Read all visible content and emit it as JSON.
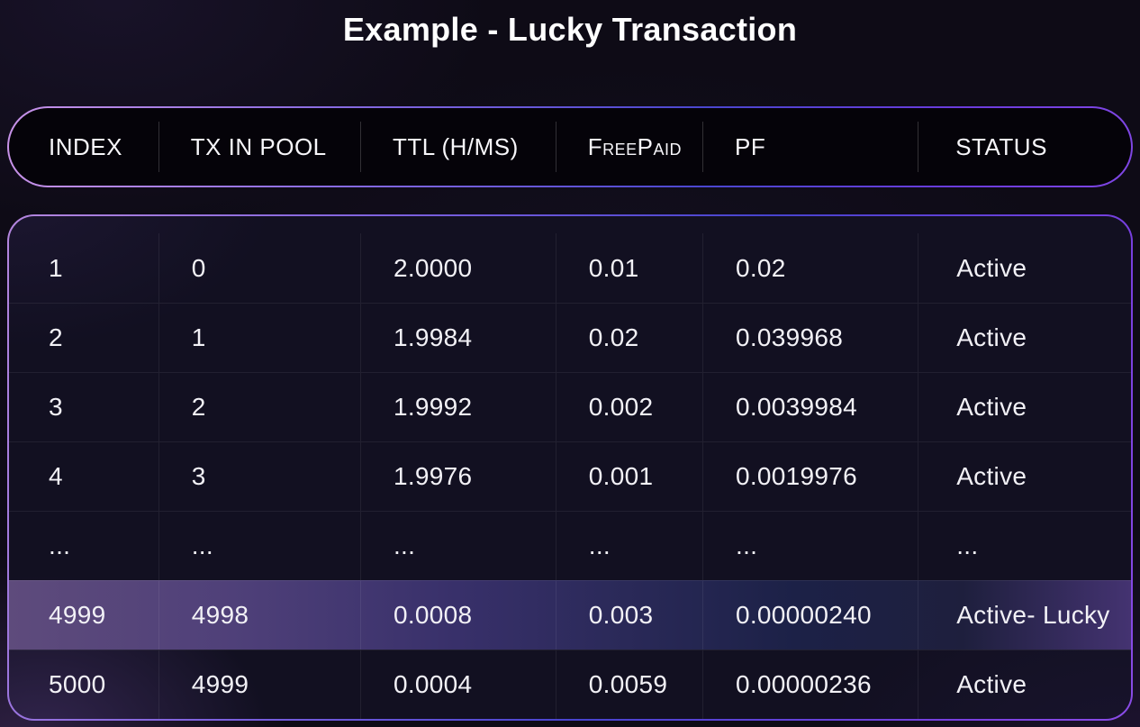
{
  "page": {
    "title": "Example - Lucky Transaction"
  },
  "table": {
    "columns": [
      {
        "label": "INDEX"
      },
      {
        "label": "TX IN POOL"
      },
      {
        "label": "TTL (H/MS)"
      },
      {
        "label": "FreePaid"
      },
      {
        "label": "PF"
      },
      {
        "label": "STATUS"
      }
    ],
    "rows": [
      {
        "highlighted": false,
        "cells": [
          "1",
          "0",
          "2.0000",
          "0.01",
          "0.02",
          "Active"
        ]
      },
      {
        "highlighted": false,
        "cells": [
          "2",
          "1",
          "1.9984",
          "0.02",
          "0.039968",
          "Active"
        ]
      },
      {
        "highlighted": false,
        "cells": [
          "3",
          "2",
          "1.9992",
          "0.002",
          "0.0039984",
          "Active"
        ]
      },
      {
        "highlighted": false,
        "cells": [
          "4",
          "3",
          "1.9976",
          "0.001",
          "0.0019976",
          "Active"
        ]
      },
      {
        "highlighted": false,
        "cells": [
          "...",
          "...",
          "...",
          "...",
          "...",
          "..."
        ]
      },
      {
        "highlighted": true,
        "cells": [
          "4999",
          "4998",
          "0.0008",
          "0.003",
          "0.00000240",
          "Active- Lucky"
        ]
      },
      {
        "highlighted": false,
        "cells": [
          "5000",
          "4999",
          "0.0004",
          "0.0059",
          "0.00000236",
          "Active"
        ]
      }
    ]
  },
  "colors": {
    "accent_purple": "#7a3fe0",
    "border_gradient_left": "#c792e8",
    "border_gradient_mid": "#4a46cf",
    "border_gradient_right": "#7f46e4",
    "highlight_row_left": "#5e4b7c",
    "highlight_row_mid": "#1c2147",
    "highlight_row_right": "#443371",
    "background": "#0e0b16",
    "text": "#f2f1f6"
  }
}
